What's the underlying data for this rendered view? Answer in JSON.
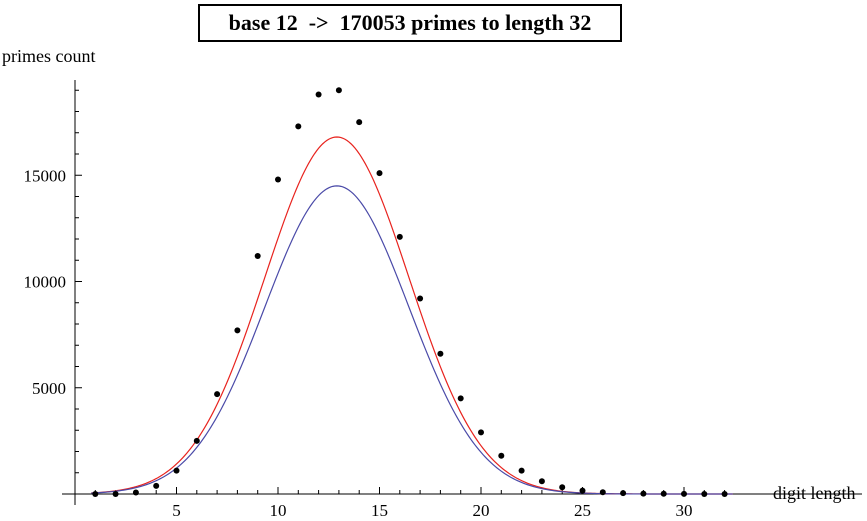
{
  "chart_data": {
    "type": "scatter",
    "title": "base 12  ->  170053 primes to length 32",
    "xlabel": "digit length",
    "ylabel": "primes count",
    "xlim": [
      0,
      32.7
    ],
    "ylim": [
      0,
      19400
    ],
    "x_ticks": [
      5,
      10,
      15,
      20,
      25,
      30
    ],
    "y_ticks": [
      5000,
      10000,
      15000
    ],
    "x_ticks_minor_step": 1,
    "y_ticks_minor_step": 1000,
    "grid": false,
    "series": [
      {
        "kind": "points",
        "color": "#000000",
        "points": [
          [
            1,
            0
          ],
          [
            2,
            0
          ],
          [
            3,
            70
          ],
          [
            4,
            380
          ],
          [
            5,
            1100
          ],
          [
            6,
            2500
          ],
          [
            7,
            4700
          ],
          [
            8,
            7700
          ],
          [
            9,
            11200
          ],
          [
            10,
            14800
          ],
          [
            11,
            17300
          ],
          [
            12,
            18800
          ],
          [
            13,
            19000
          ],
          [
            14,
            17500
          ],
          [
            15,
            15100
          ],
          [
            16,
            12100
          ],
          [
            17,
            9200
          ],
          [
            18,
            6600
          ],
          [
            19,
            4500
          ],
          [
            20,
            2900
          ],
          [
            21,
            1800
          ],
          [
            22,
            1100
          ],
          [
            23,
            600
          ],
          [
            24,
            320
          ],
          [
            25,
            160
          ],
          [
            26,
            80
          ],
          [
            27,
            40
          ],
          [
            28,
            20
          ],
          [
            29,
            10
          ],
          [
            30,
            5
          ],
          [
            31,
            2
          ],
          [
            32,
            1
          ]
        ]
      },
      {
        "kind": "curve",
        "color": "#e8231e",
        "shape": "gaussian",
        "peak_x": 12.9,
        "peak_y": 16800,
        "sigma": 3.55
      },
      {
        "kind": "curve",
        "color": "#4a4aa8",
        "shape": "gaussian",
        "peak_x": 12.9,
        "peak_y": 14500,
        "sigma": 3.55
      }
    ]
  }
}
